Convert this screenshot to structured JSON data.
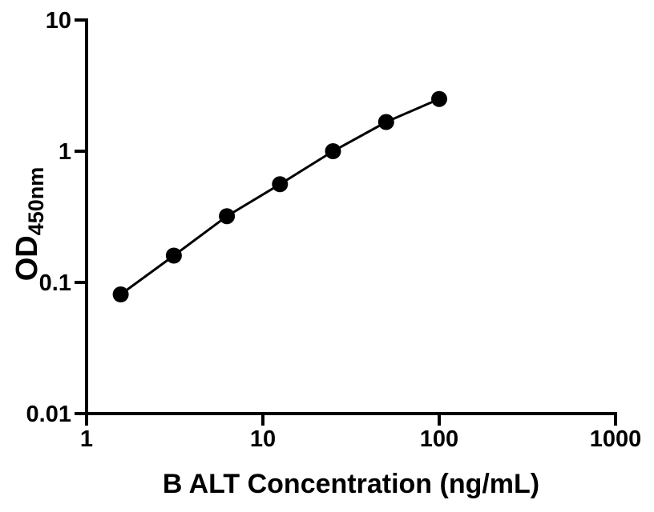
{
  "chart_data": {
    "type": "line",
    "title": "",
    "xlabel": "B ALT Concentration (ng/mL)",
    "ylabel_main": "OD",
    "ylabel_sub": "450nm",
    "xscale": "log",
    "yscale": "log",
    "xlim": [
      1,
      1000
    ],
    "ylim": [
      0.01,
      10
    ],
    "x_ticks": [
      {
        "value": 1,
        "label": "1"
      },
      {
        "value": 10,
        "label": "10"
      },
      {
        "value": 100,
        "label": "100"
      },
      {
        "value": 1000,
        "label": "1000"
      }
    ],
    "y_ticks": [
      {
        "value": 0.01,
        "label": "0.01"
      },
      {
        "value": 0.1,
        "label": "0.1"
      },
      {
        "value": 1,
        "label": "1"
      },
      {
        "value": 10,
        "label": "10"
      }
    ],
    "x": [
      1.5625,
      3.125,
      6.25,
      12.5,
      25,
      50,
      100
    ],
    "y": [
      0.081,
      0.16,
      0.32,
      0.56,
      1.0,
      1.67,
      2.5
    ],
    "grid": false,
    "legend": "none",
    "marker": "filled-circle",
    "marker_radius": 10,
    "marker_color": "#000000",
    "line_color": "#000000",
    "line_width": 3,
    "axis_color": "#000000",
    "background": "#ffffff"
  }
}
